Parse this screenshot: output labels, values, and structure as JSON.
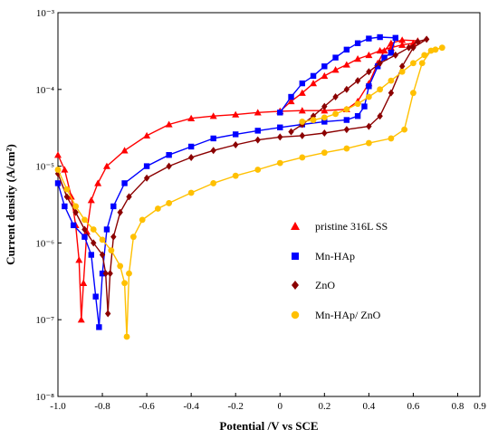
{
  "chart_data": {
    "type": "line",
    "xlabel": "Potential /V vs SCE",
    "ylabel": "Current density (A/cm²)",
    "xlim": [
      -1.0,
      0.9
    ],
    "ylim_log10": [
      -8,
      -3
    ],
    "y_scale": "log",
    "grid": false,
    "legend_position": "right",
    "x_ticks": [
      "-1.0",
      "-0.8",
      "-0.6",
      "-0.4",
      "-0.2",
      "0",
      "0.2",
      "0.4",
      "0.6",
      "0.8",
      "0.9"
    ],
    "y_ticks": [
      {
        "label": "10⁻⁸",
        "exp": -8
      },
      {
        "label": "10⁻⁷",
        "exp": -7
      },
      {
        "label": "10⁻⁶",
        "exp": -6
      },
      {
        "label": "10⁻⁵",
        "exp": -5
      },
      {
        "label": "10⁻⁴",
        "exp": -4
      },
      {
        "label": "10⁻³",
        "exp": -3
      }
    ],
    "series": [
      {
        "name": "pristine 316L SS",
        "color": "#ff0000",
        "marker": "triangle",
        "points": [
          [
            -1.0,
            1.4e-05
          ],
          [
            -0.97,
            9e-06
          ],
          [
            -0.94,
            4e-06
          ],
          [
            -0.92,
            1.7e-06
          ],
          [
            -0.905,
            6e-07
          ],
          [
            -0.895,
            1e-07
          ],
          [
            -0.885,
            3e-07
          ],
          [
            -0.87,
            1.4e-06
          ],
          [
            -0.85,
            3.6e-06
          ],
          [
            -0.82,
            6e-06
          ],
          [
            -0.78,
            1e-05
          ],
          [
            -0.7,
            1.6e-05
          ],
          [
            -0.6,
            2.5e-05
          ],
          [
            -0.5,
            3.5e-05
          ],
          [
            -0.4,
            4.2e-05
          ],
          [
            -0.3,
            4.5e-05
          ],
          [
            -0.2,
            4.7e-05
          ],
          [
            -0.1,
            5e-05
          ],
          [
            0.0,
            5.2e-05
          ],
          [
            0.1,
            5.3e-05
          ],
          [
            0.2,
            5.3e-05
          ],
          [
            0.3,
            5.5e-05
          ],
          [
            0.35,
            7e-05
          ],
          [
            0.4,
            0.00012
          ],
          [
            0.44,
            0.00022
          ],
          [
            0.47,
            0.00032
          ],
          [
            0.5,
            0.0004
          ],
          [
            0.55,
            0.00044
          ],
          [
            0.62,
            0.00043
          ],
          [
            0.6,
            0.0004
          ],
          [
            0.55,
            0.00038
          ],
          [
            0.5,
            0.00035
          ],
          [
            0.45,
            0.00032
          ],
          [
            0.4,
            0.00028
          ],
          [
            0.35,
            0.00025
          ],
          [
            0.3,
            0.00021
          ],
          [
            0.25,
            0.00018
          ],
          [
            0.2,
            0.00015
          ],
          [
            0.15,
            0.00012
          ],
          [
            0.1,
            9e-05
          ],
          [
            0.05,
            7e-05
          ],
          [
            0.0,
            5.2e-05
          ]
        ]
      },
      {
        "name": "Mn-HAp",
        "color": "#0000ff",
        "marker": "square",
        "points": [
          [
            -1.0,
            6e-06
          ],
          [
            -0.97,
            3e-06
          ],
          [
            -0.93,
            1.7e-06
          ],
          [
            -0.88,
            1.2e-06
          ],
          [
            -0.85,
            7e-07
          ],
          [
            -0.83,
            2e-07
          ],
          [
            -0.815,
            8e-08
          ],
          [
            -0.8,
            4e-07
          ],
          [
            -0.78,
            1.5e-06
          ],
          [
            -0.75,
            3e-06
          ],
          [
            -0.7,
            6e-06
          ],
          [
            -0.6,
            1e-05
          ],
          [
            -0.5,
            1.4e-05
          ],
          [
            -0.4,
            1.8e-05
          ],
          [
            -0.3,
            2.3e-05
          ],
          [
            -0.2,
            2.6e-05
          ],
          [
            -0.1,
            2.9e-05
          ],
          [
            0.0,
            3.2e-05
          ],
          [
            0.1,
            3.5e-05
          ],
          [
            0.2,
            3.8e-05
          ],
          [
            0.3,
            4e-05
          ],
          [
            0.35,
            4.5e-05
          ],
          [
            0.38,
            6e-05
          ],
          [
            0.4,
            0.00011
          ],
          [
            0.44,
            0.0002
          ],
          [
            0.47,
            0.00026
          ],
          [
            0.5,
            0.0003
          ],
          [
            0.52,
            0.00047
          ],
          [
            0.45,
            0.00048
          ],
          [
            0.4,
            0.00046
          ],
          [
            0.35,
            0.0004
          ],
          [
            0.3,
            0.00033
          ],
          [
            0.25,
            0.00026
          ],
          [
            0.2,
            0.0002
          ],
          [
            0.15,
            0.00015
          ],
          [
            0.1,
            0.00012
          ],
          [
            0.05,
            8e-05
          ],
          [
            0.0,
            5e-05
          ]
        ]
      },
      {
        "name": "ZnO",
        "color": "#8b0000",
        "marker": "diamond",
        "points": [
          [
            -1.0,
            8e-06
          ],
          [
            -0.96,
            4e-06
          ],
          [
            -0.92,
            2.5e-06
          ],
          [
            -0.88,
            1.5e-06
          ],
          [
            -0.84,
            1e-06
          ],
          [
            -0.8,
            7e-07
          ],
          [
            -0.785,
            4e-07
          ],
          [
            -0.775,
            1.2e-07
          ],
          [
            -0.765,
            4e-07
          ],
          [
            -0.75,
            1.2e-06
          ],
          [
            -0.72,
            2.5e-06
          ],
          [
            -0.68,
            4e-06
          ],
          [
            -0.6,
            7e-06
          ],
          [
            -0.5,
            1e-05
          ],
          [
            -0.4,
            1.3e-05
          ],
          [
            -0.3,
            1.6e-05
          ],
          [
            -0.2,
            1.9e-05
          ],
          [
            -0.1,
            2.2e-05
          ],
          [
            0.0,
            2.4e-05
          ],
          [
            0.1,
            2.5e-05
          ],
          [
            0.2,
            2.7e-05
          ],
          [
            0.3,
            3e-05
          ],
          [
            0.4,
            3.3e-05
          ],
          [
            0.45,
            4.5e-05
          ],
          [
            0.5,
            9e-05
          ],
          [
            0.55,
            0.0002
          ],
          [
            0.6,
            0.00035
          ],
          [
            0.66,
            0.00045
          ],
          [
            0.62,
            0.00042
          ],
          [
            0.58,
            0.00035
          ],
          [
            0.52,
            0.00028
          ],
          [
            0.45,
            0.00022
          ],
          [
            0.4,
            0.00017
          ],
          [
            0.35,
            0.00013
          ],
          [
            0.3,
            0.0001
          ],
          [
            0.25,
            8e-05
          ],
          [
            0.2,
            6e-05
          ],
          [
            0.15,
            4.5e-05
          ],
          [
            0.1,
            3.5e-05
          ],
          [
            0.05,
            2.8e-05
          ]
        ]
      },
      {
        "name": "Mn-HAp/ ZnO",
        "color": "#ffc000",
        "marker": "circle",
        "points": [
          [
            -1.0,
            9e-06
          ],
          [
            -0.96,
            5e-06
          ],
          [
            -0.92,
            3e-06
          ],
          [
            -0.88,
            2e-06
          ],
          [
            -0.84,
            1.5e-06
          ],
          [
            -0.8,
            1.1e-06
          ],
          [
            -0.76,
            8e-07
          ],
          [
            -0.72,
            5e-07
          ],
          [
            -0.7,
            3e-07
          ],
          [
            -0.69,
            6e-08
          ],
          [
            -0.68,
            4e-07
          ],
          [
            -0.66,
            1.2e-06
          ],
          [
            -0.62,
            2e-06
          ],
          [
            -0.55,
            2.8e-06
          ],
          [
            -0.5,
            3.3e-06
          ],
          [
            -0.4,
            4.5e-06
          ],
          [
            -0.3,
            6e-06
          ],
          [
            -0.2,
            7.5e-06
          ],
          [
            -0.1,
            9e-06
          ],
          [
            0.0,
            1.1e-05
          ],
          [
            0.1,
            1.3e-05
          ],
          [
            0.2,
            1.5e-05
          ],
          [
            0.3,
            1.7e-05
          ],
          [
            0.4,
            2e-05
          ],
          [
            0.5,
            2.3e-05
          ],
          [
            0.56,
            3e-05
          ],
          [
            0.6,
            9e-05
          ],
          [
            0.64,
            0.00022
          ],
          [
            0.68,
            0.00032
          ],
          [
            0.73,
            0.00035
          ],
          [
            0.7,
            0.00033
          ],
          [
            0.65,
            0.00028
          ],
          [
            0.6,
            0.00022
          ],
          [
            0.55,
            0.00017
          ],
          [
            0.5,
            0.00013
          ],
          [
            0.45,
            0.0001
          ],
          [
            0.4,
            8e-05
          ],
          [
            0.35,
            6.5e-05
          ],
          [
            0.3,
            5.5e-05
          ],
          [
            0.25,
            4.8e-05
          ],
          [
            0.2,
            4.3e-05
          ],
          [
            0.15,
            4e-05
          ],
          [
            0.1,
            3.8e-05
          ]
        ]
      }
    ]
  }
}
